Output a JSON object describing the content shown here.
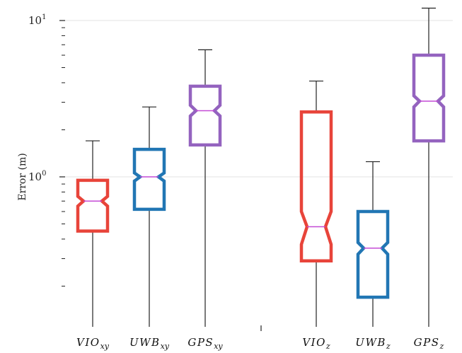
{
  "chart_data": {
    "type": "box",
    "ylabel": "Error (m)",
    "yscale": "log",
    "ylim": [
      0.1,
      12
    ],
    "yticks": [
      {
        "value": 1,
        "base": "10",
        "exp": "0"
      },
      {
        "value": 10,
        "base": "10",
        "exp": "1"
      }
    ],
    "grid": "horizontal at decades",
    "boxes": [
      {
        "label_base": "VIO",
        "label_sub": "xy",
        "color": "#e8443a",
        "whisker_low": 0.1,
        "q1": 0.45,
        "median": 0.7,
        "q3": 0.95,
        "whisker_high": 1.7,
        "notch_low": 0.65,
        "notch_high": 0.75
      },
      {
        "label_base": "UWB",
        "label_sub": "xy",
        "color": "#2176b4",
        "whisker_low": 0.1,
        "q1": 0.62,
        "median": 1.0,
        "q3": 1.5,
        "whisker_high": 2.8,
        "notch_low": 0.94,
        "notch_high": 1.06
      },
      {
        "label_base": "GPS",
        "label_sub": "xy",
        "color": "#9463bf",
        "whisker_low": 0.1,
        "q1": 1.6,
        "median": 2.65,
        "q3": 3.8,
        "whisker_high": 6.5,
        "notch_low": 2.45,
        "notch_high": 2.87
      },
      {
        "label_base": "VIO",
        "label_sub": "z",
        "color": "#e8443a",
        "whisker_low": 0.1,
        "q1": 0.29,
        "median": 0.48,
        "q3": 2.6,
        "whisker_high": 4.1,
        "notch_low": 0.37,
        "notch_high": 0.6
      },
      {
        "label_base": "UWB",
        "label_sub": "z",
        "color": "#2176b4",
        "whisker_low": 0.1,
        "q1": 0.17,
        "median": 0.35,
        "q3": 0.6,
        "whisker_high": 1.25,
        "notch_low": 0.32,
        "notch_high": 0.38
      },
      {
        "label_base": "GPS",
        "label_sub": "z",
        "color": "#9463bf",
        "whisker_low": 0.1,
        "q1": 1.7,
        "median": 3.05,
        "q3": 6.0,
        "whisker_high": 12,
        "notch_low": 2.8,
        "notch_high": 3.3
      }
    ]
  }
}
